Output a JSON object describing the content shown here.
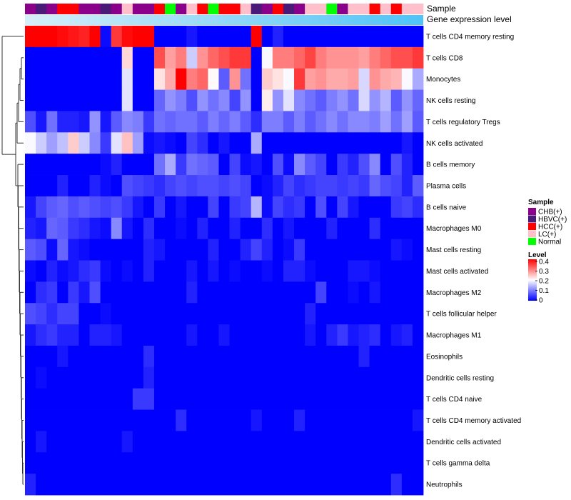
{
  "chart_data": {
    "type": "heatmap",
    "title": "",
    "annotation_labels": {
      "sample": "Sample",
      "gene_level": "Gene expression level"
    },
    "sample_legend": {
      "title": "Sample",
      "items": [
        {
          "label": "CHB(+)",
          "color": "#8B008B"
        },
        {
          "label": "HBVC(+)",
          "color": "#4B1A78"
        },
        {
          "label": "HCC(+)",
          "color": "#FF0000"
        },
        {
          "label": "LC(+)",
          "color": "#FFC0CB"
        },
        {
          "label": "Normal",
          "color": "#00FF00"
        }
      ]
    },
    "level_legend": {
      "title": "Level",
      "ticks": [
        "0.4",
        "0.3",
        "0.2",
        "0.1",
        "0"
      ],
      "range": [
        0,
        0.4
      ]
    },
    "color_scale": {
      "low": "#0000FF",
      "mid": "#FFFFFF",
      "high": "#FF0000",
      "range": [
        0,
        0.45
      ]
    },
    "gene_level_bar": {
      "color_start": "#D6EEF9",
      "color_end": "#4FC3F7"
    },
    "sample_groups": [
      0,
      1,
      0,
      2,
      2,
      0,
      0,
      1,
      0,
      3,
      0,
      0,
      2,
      4,
      0,
      3,
      2,
      4,
      2,
      2,
      3,
      1,
      0,
      2,
      1,
      0,
      3,
      3,
      4,
      0,
      3,
      3,
      2,
      3,
      2,
      3,
      3
    ],
    "rows": [
      "T cells CD4 memory resting",
      "T cells CD8",
      "Monocytes",
      "NK cells resting",
      "T cells regulatory  Tregs",
      "NK cells activated",
      "B cells memory",
      "Plasma cells",
      "B cells naive",
      "Macrophages M0",
      "Mast cells resting",
      "Mast cells activated",
      "Macrophages M2",
      "T cells follicular helper",
      "Macrophages M1",
      "Eosinophils",
      "Dendritic cells resting",
      "T cells CD4 naive",
      "T cells CD4 memory activated",
      "Dendritic cells activated",
      "T cells gamma delta",
      "Neutrophils"
    ],
    "values": [
      [
        0.45,
        0.45,
        0.45,
        0.44,
        0.43,
        0.42,
        0.45,
        0.01,
        0.4,
        0.44,
        0.45,
        0.45,
        0.0,
        0.0,
        0.0,
        0.02,
        0.0,
        0.0,
        0.0,
        0.0,
        0.0,
        0.45,
        0.0,
        0.03,
        0.0,
        0.0,
        0.0,
        0.0,
        0.0,
        0.0,
        0.0,
        0.0,
        0.0,
        0.0,
        0.0,
        0.0,
        0.0
      ],
      [
        0.0,
        0.0,
        0.0,
        0.0,
        0.0,
        0.0,
        0.0,
        0.0,
        0.0,
        0.26,
        0.0,
        0.0,
        0.38,
        0.31,
        0.34,
        0.18,
        0.32,
        0.36,
        0.38,
        0.4,
        0.4,
        0.0,
        0.22,
        0.34,
        0.34,
        0.36,
        0.39,
        0.34,
        0.32,
        0.32,
        0.32,
        0.31,
        0.34,
        0.36,
        0.38,
        0.38,
        0.4
      ],
      [
        0.0,
        0.0,
        0.0,
        0.0,
        0.0,
        0.0,
        0.0,
        0.0,
        0.0,
        0.2,
        0.0,
        0.0,
        0.25,
        0.3,
        0.45,
        0.34,
        0.36,
        0.23,
        0.08,
        0.32,
        0.1,
        0.0,
        0.27,
        0.25,
        0.22,
        0.4,
        0.31,
        0.32,
        0.3,
        0.3,
        0.31,
        0.19,
        0.32,
        0.3,
        0.29,
        0.22,
        0.15
      ],
      [
        0.0,
        0.0,
        0.0,
        0.0,
        0.0,
        0.0,
        0.0,
        0.0,
        0.0,
        0.2,
        0.0,
        0.0,
        0.09,
        0.13,
        0.11,
        0.07,
        0.13,
        0.1,
        0.12,
        0.06,
        0.13,
        0.0,
        0.24,
        0.13,
        0.2,
        0.12,
        0.1,
        0.08,
        0.11,
        0.13,
        0.1,
        0.19,
        0.13,
        0.16,
        0.08,
        0.13,
        0.09
      ],
      [
        0.07,
        0.02,
        0.1,
        0.03,
        0.03,
        0.02,
        0.13,
        0.02,
        0.08,
        0.12,
        0.11,
        0.05,
        0.1,
        0.09,
        0.1,
        0.1,
        0.08,
        0.11,
        0.09,
        0.11,
        0.08,
        0.04,
        0.11,
        0.11,
        0.08,
        0.11,
        0.08,
        0.1,
        0.12,
        0.1,
        0.12,
        0.12,
        0.11,
        0.14,
        0.1,
        0.14,
        0.08
      ],
      [
        0.22,
        0.18,
        0.14,
        0.17,
        0.27,
        0.18,
        0.12,
        0.05,
        0.2,
        0.28,
        0.14,
        0.01,
        0.02,
        0.01,
        0.0,
        0.06,
        0.04,
        0.0,
        0.02,
        0.0,
        0.0,
        0.15,
        0.0,
        0.0,
        0.0,
        0.0,
        0.0,
        0.0,
        0.0,
        0.0,
        0.0,
        0.0,
        0.0,
        0.0,
        0.0,
        0.02,
        0.0
      ],
      [
        0.0,
        0.0,
        0.0,
        0.0,
        0.0,
        0.0,
        0.0,
        0.01,
        0.03,
        0.0,
        0.0,
        0.0,
        0.1,
        0.15,
        0.05,
        0.1,
        0.09,
        0.08,
        0.0,
        0.06,
        0.01,
        0.02,
        0.0,
        0.07,
        0.01,
        0.12,
        0.08,
        0.06,
        0.0,
        0.05,
        0.03,
        0.07,
        0.12,
        0.0,
        0.07,
        0.03,
        0.0
      ],
      [
        0.0,
        0.0,
        0.0,
        0.03,
        0.0,
        0.0,
        0.03,
        0.01,
        0.0,
        0.07,
        0.06,
        0.05,
        0.04,
        0.06,
        0.07,
        0.06,
        0.07,
        0.07,
        0.06,
        0.07,
        0.06,
        0.0,
        0.01,
        0.03,
        0.06,
        0.04,
        0.05,
        0.06,
        0.06,
        0.05,
        0.06,
        0.05,
        0.09,
        0.07,
        0.06,
        0.03,
        0.08
      ],
      [
        0.02,
        0.06,
        0.08,
        0.09,
        0.07,
        0.08,
        0.07,
        0.06,
        0.07,
        0.05,
        0.02,
        0.0,
        0.05,
        0.0,
        0.02,
        0.0,
        0.0,
        0.06,
        0.0,
        0.05,
        0.06,
        0.16,
        0.01,
        0.06,
        0.04,
        0.05,
        0.0,
        0.07,
        0.0,
        0.06,
        0.02,
        0.0,
        0.0,
        0.0,
        0.05,
        0.06,
        0.04
      ],
      [
        0.03,
        0.02,
        0.09,
        0.08,
        0.05,
        0.04,
        0.02,
        0.01,
        0.12,
        0.02,
        0.0,
        0.04,
        0.0,
        0.0,
        0.01,
        0.0,
        0.03,
        0.0,
        0.0,
        0.03,
        0.0,
        0.0,
        0.04,
        0.0,
        0.02,
        0.0,
        0.0,
        0.0,
        0.03,
        0.0,
        0.0,
        0.0,
        0.04,
        0.0,
        0.0,
        0.0,
        0.0
      ],
      [
        0.08,
        0.07,
        0.01,
        0.09,
        0.02,
        0.01,
        0.0,
        0.0,
        0.0,
        0.0,
        0.0,
        0.03,
        0.02,
        0.0,
        0.0,
        0.0,
        0.0,
        0.03,
        0.0,
        0.0,
        0.03,
        0.06,
        0.03,
        0.0,
        0.01,
        0.05,
        0.0,
        0.0,
        0.0,
        0.0,
        0.0,
        0.0,
        0.0,
        0.0,
        0.02,
        0.01,
        0.0
      ],
      [
        0.01,
        0.0,
        0.03,
        0.01,
        0.02,
        0.04,
        0.05,
        0.01,
        0.0,
        0.01,
        0.0,
        0.03,
        0.0,
        0.0,
        0.0,
        0.02,
        0.0,
        0.02,
        0.0,
        0.01,
        0.0,
        0.0,
        0.01,
        0.0,
        0.03,
        0.03,
        0.01,
        0.0,
        0.0,
        0.0,
        0.02,
        0.02,
        0.01,
        0.0,
        0.0,
        0.0,
        0.0
      ],
      [
        0.0,
        0.04,
        0.05,
        0.0,
        0.05,
        0.02,
        0.07,
        0.0,
        0.0,
        0.0,
        0.0,
        0.0,
        0.0,
        0.0,
        0.0,
        0.03,
        0.0,
        0.0,
        0.0,
        0.0,
        0.0,
        0.0,
        0.0,
        0.0,
        0.0,
        0.0,
        0.0,
        0.06,
        0.0,
        0.0,
        0.01,
        0.0,
        0.02,
        0.0,
        0.0,
        0.0,
        0.0
      ],
      [
        0.07,
        0.06,
        0.04,
        0.06,
        0.06,
        0.0,
        0.0,
        0.01,
        0.0,
        0.0,
        0.0,
        0.0,
        0.0,
        0.0,
        0.0,
        0.0,
        0.0,
        0.0,
        0.0,
        0.0,
        0.0,
        0.0,
        0.0,
        0.0,
        0.0,
        0.0,
        0.03,
        0.0,
        0.0,
        0.0,
        0.0,
        0.0,
        0.0,
        0.0,
        0.0,
        0.0,
        0.0
      ],
      [
        0.02,
        0.04,
        0.05,
        0.03,
        0.03,
        0.0,
        0.03,
        0.03,
        0.02,
        0.0,
        0.0,
        0.0,
        0.0,
        0.0,
        0.0,
        0.02,
        0.0,
        0.0,
        0.02,
        0.0,
        0.0,
        0.0,
        0.0,
        0.0,
        0.0,
        0.0,
        0.02,
        0.0,
        0.03,
        0.05,
        0.02,
        0.03,
        0.04,
        0.0,
        0.02,
        0.03,
        0.0
      ],
      [
        0.0,
        0.0,
        0.0,
        0.02,
        0.0,
        0.0,
        0.0,
        0.0,
        0.0,
        0.0,
        0.0,
        0.04,
        0.0,
        0.0,
        0.0,
        0.0,
        0.0,
        0.0,
        0.0,
        0.0,
        0.0,
        0.0,
        0.0,
        0.0,
        0.0,
        0.0,
        0.0,
        0.0,
        0.0,
        0.0,
        0.0,
        0.03,
        0.0,
        0.0,
        0.0,
        0.0,
        0.0
      ],
      [
        0.0,
        0.01,
        0.0,
        0.0,
        0.0,
        0.0,
        0.0,
        0.0,
        0.0,
        0.0,
        0.0,
        0.03,
        0.0,
        0.0,
        0.0,
        0.0,
        0.0,
        0.0,
        0.0,
        0.0,
        0.0,
        0.0,
        0.0,
        0.0,
        0.0,
        0.0,
        0.0,
        0.0,
        0.0,
        0.0,
        0.0,
        0.0,
        0.0,
        0.0,
        0.0,
        0.0,
        0.0
      ],
      [
        0.0,
        0.0,
        0.0,
        0.0,
        0.0,
        0.0,
        0.0,
        0.0,
        0.0,
        0.0,
        0.05,
        0.05,
        0.0,
        0.0,
        0.0,
        0.0,
        0.0,
        0.0,
        0.0,
        0.0,
        0.0,
        0.0,
        0.0,
        0.0,
        0.0,
        0.0,
        0.0,
        0.0,
        0.0,
        0.0,
        0.0,
        0.0,
        0.0,
        0.0,
        0.0,
        0.0,
        0.0
      ],
      [
        0.0,
        0.0,
        0.0,
        0.0,
        0.0,
        0.0,
        0.0,
        0.0,
        0.0,
        0.0,
        0.0,
        0.0,
        0.0,
        0.0,
        0.04,
        0.0,
        0.0,
        0.0,
        0.0,
        0.0,
        0.0,
        0.02,
        0.0,
        0.0,
        0.0,
        0.03,
        0.0,
        0.0,
        0.0,
        0.0,
        0.0,
        0.0,
        0.0,
        0.0,
        0.0,
        0.0,
        0.02
      ],
      [
        0.0,
        0.02,
        0.0,
        0.0,
        0.0,
        0.0,
        0.0,
        0.0,
        0.0,
        0.02,
        0.0,
        0.0,
        0.0,
        0.0,
        0.0,
        0.0,
        0.0,
        0.0,
        0.0,
        0.0,
        0.0,
        0.0,
        0.0,
        0.0,
        0.0,
        0.0,
        0.0,
        0.0,
        0.0,
        0.0,
        0.0,
        0.0,
        0.0,
        0.0,
        0.0,
        0.0,
        0.0
      ],
      [
        0.0,
        0.0,
        0.0,
        0.0,
        0.0,
        0.0,
        0.0,
        0.0,
        0.0,
        0.0,
        0.0,
        0.0,
        0.0,
        0.0,
        0.0,
        0.0,
        0.0,
        0.0,
        0.0,
        0.0,
        0.0,
        0.0,
        0.0,
        0.0,
        0.0,
        0.0,
        0.0,
        0.0,
        0.0,
        0.0,
        0.0,
        0.0,
        0.0,
        0.0,
        0.0,
        0.0,
        0.0
      ],
      [
        0.03,
        0.0,
        0.0,
        0.0,
        0.0,
        0.0,
        0.0,
        0.0,
        0.0,
        0.0,
        0.0,
        0.0,
        0.0,
        0.0,
        0.0,
        0.0,
        0.0,
        0.0,
        0.0,
        0.0,
        0.0,
        0.0,
        0.0,
        0.0,
        0.0,
        0.0,
        0.0,
        0.0,
        0.0,
        0.0,
        0.0,
        0.0,
        0.0,
        0.0,
        0.04,
        0.0,
        0.0
      ]
    ]
  }
}
